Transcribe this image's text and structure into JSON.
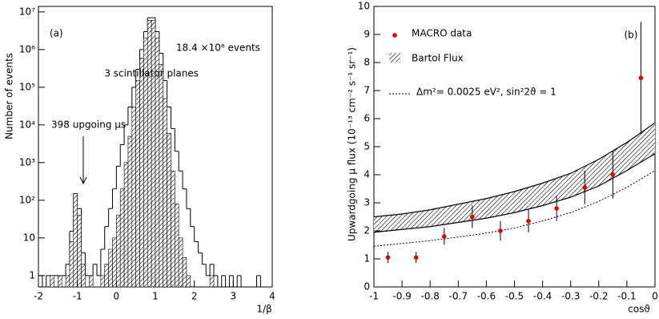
{
  "chart_data": [
    {
      "type": "histogram",
      "ylabel": "Number of events",
      "xlabel": "1/β",
      "annotations": [
        "(a)",
        "18.4 ×10⁶ events",
        "3 scintillator planes",
        "398 upgoing μs"
      ],
      "log_y": true,
      "xlim": [
        -2,
        4
      ],
      "xticks": [
        -2,
        -1,
        0,
        1,
        2,
        3,
        4
      ],
      "ylim": [
        0.5,
        14000000
      ],
      "yticks": [
        1,
        10,
        {
          "value": 100,
          "label": "10²"
        },
        {
          "value": 1000,
          "label": "10³"
        },
        {
          "value": 10000,
          "label": "10⁴"
        },
        {
          "value": 100000,
          "label": "10⁵"
        },
        {
          "value": 1000000,
          "label": "10⁶"
        },
        {
          "value": 10000000,
          "label": "10⁷"
        }
      ],
      "bins": [
        -2,
        -1.9,
        -1.8,
        -1.7,
        -1.6,
        -1.5,
        -1.4,
        -1.3,
        -1.2,
        -1.1,
        -1,
        -0.9,
        -0.8,
        -0.7,
        -0.6,
        -0.5,
        -0.4,
        -0.3,
        -0.2,
        -0.1,
        0,
        0.1,
        0.2,
        0.3,
        0.4,
        0.5,
        0.6,
        0.7,
        0.8,
        0.9,
        1,
        1.1,
        1.2,
        1.3,
        1.4,
        1.5,
        1.6,
        1.7,
        1.8,
        1.9,
        2,
        2.1,
        2.2,
        2.3,
        2.4,
        2.5,
        2.6,
        2.7,
        2.8,
        2.9,
        3,
        3.1,
        3.2,
        3.3,
        3.4,
        3.5,
        3.6,
        3.7,
        3.8,
        3.9,
        4
      ],
      "series": [
        {
          "style": "outline",
          "color": "#000000",
          "values": [
            1,
            0,
            1,
            1,
            1,
            1,
            1,
            2,
            15,
            150,
            60,
            4,
            1,
            1,
            2,
            1,
            5,
            20,
            60,
            200,
            800,
            3000,
            10000,
            30000,
            100000,
            300000,
            1000000,
            3000000,
            7000000,
            7000000,
            3000000,
            800000,
            150000,
            30000,
            8000,
            2000,
            600,
            200,
            60,
            20,
            8,
            4,
            2,
            1,
            2,
            1,
            0,
            1,
            0,
            1,
            0,
            1,
            0,
            0,
            0,
            0,
            1,
            0,
            0,
            0
          ]
        },
        {
          "style": "hatch",
          "color": "#000000",
          "values": [
            0,
            0,
            0,
            1,
            0,
            1,
            0,
            1,
            8,
            150,
            40,
            2,
            0,
            1,
            0,
            0,
            1,
            2,
            5,
            10,
            40,
            200,
            1000,
            5000,
            30000,
            150000,
            600000,
            2000000,
            6000000,
            6000000,
            2000000,
            400000,
            50000,
            6000,
            600,
            80,
            10,
            3,
            1,
            0,
            0,
            0,
            0,
            0,
            1,
            0,
            0,
            0,
            0,
            0,
            0,
            0,
            0,
            0,
            0,
            0,
            0,
            0,
            0,
            0
          ]
        }
      ]
    },
    {
      "type": "scatter",
      "ylabel": "Upwardgoing μ flux (10⁻¹³ cm⁻² s⁻¹ sr⁻¹)",
      "xlabel": "cosϑ",
      "annotation": "(b)",
      "xlim": [
        -1,
        0
      ],
      "xticks": [
        -1,
        -0.9,
        -0.8,
        -0.7,
        -0.6,
        -0.5,
        -0.4,
        -0.3,
        -0.2,
        -0.1,
        0
      ],
      "ylim": [
        0,
        10
      ],
      "yticks": [
        0,
        1,
        2,
        3,
        4,
        5,
        6,
        7,
        8,
        9,
        10
      ],
      "series": [
        {
          "name": "MACRO data",
          "color": "#e00000",
          "x": [
            -0.95,
            -0.85,
            -0.75,
            -0.65,
            -0.55,
            -0.45,
            -0.35,
            -0.25,
            -0.15,
            -0.05
          ],
          "values": [
            1.05,
            1.05,
            1.8,
            2.5,
            2.0,
            2.35,
            2.8,
            3.55,
            4.0,
            7.45
          ],
          "errors": [
            0.2,
            0.2,
            0.3,
            0.4,
            0.35,
            0.4,
            0.45,
            0.6,
            0.85,
            2.0
          ]
        }
      ],
      "band": {
        "name": "Bartol Flux",
        "color": "#000000",
        "x": [
          -1,
          -0.9,
          -0.8,
          -0.7,
          -0.6,
          -0.5,
          -0.4,
          -0.3,
          -0.2,
          -0.1,
          0
        ],
        "lower": [
          1.95,
          2.05,
          2.15,
          2.3,
          2.45,
          2.65,
          2.9,
          3.2,
          3.6,
          4.15,
          4.75
        ],
        "upper": [
          2.5,
          2.6,
          2.75,
          2.95,
          3.15,
          3.4,
          3.7,
          4.05,
          4.55,
          5.15,
          5.85
        ]
      },
      "curve": {
        "name": "Δm²= 0.0025 eV², sin²2ϑ = 1",
        "color": "#000000",
        "style": "dotted",
        "x": [
          -1,
          -0.9,
          -0.8,
          -0.7,
          -0.6,
          -0.5,
          -0.4,
          -0.3,
          -0.2,
          -0.1,
          0
        ],
        "values": [
          1.45,
          1.55,
          1.65,
          1.78,
          1.92,
          2.1,
          2.35,
          2.65,
          3.05,
          3.55,
          4.15
        ]
      }
    }
  ]
}
